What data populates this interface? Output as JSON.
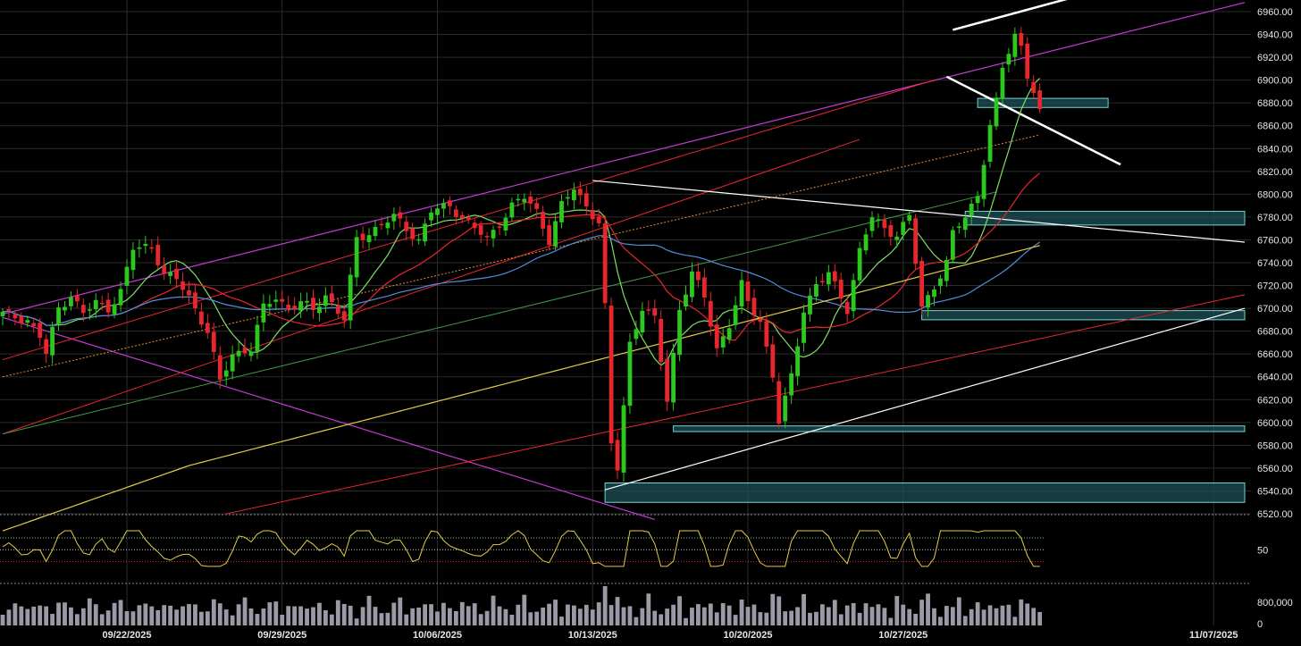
{
  "chart_data": {
    "type": "candlestick",
    "title": "",
    "price_axis": {
      "min": 6520,
      "max": 6970,
      "ticks": [
        6520,
        6540,
        6560,
        6580,
        6600,
        6620,
        6640,
        6660,
        6680,
        6700,
        6720,
        6740,
        6760,
        6780,
        6800,
        6820,
        6840,
        6860,
        6880,
        6900,
        6920,
        6940,
        6960
      ],
      "tick_labels": [
        "6520.00",
        "6540.00",
        "6560.00",
        "6580.00",
        "6600.00",
        "6620.00",
        "6640.00",
        "6660.00",
        "6680.00",
        "6700.00",
        "6720.00",
        "6740.00",
        "6760.00",
        "6780.00",
        "6800.00",
        "6820.00",
        "6840.00",
        "6860.00",
        "6880.00",
        "6900.00",
        "6920.00",
        "6940.00",
        "6960.00"
      ]
    },
    "date_axis": {
      "labels": [
        {
          "index": 20,
          "label": "09/22/2025"
        },
        {
          "index": 45,
          "label": "09/29/2025"
        },
        {
          "index": 70,
          "label": "10/06/2025"
        },
        {
          "index": 95,
          "label": "10/13/2025"
        },
        {
          "index": 120,
          "label": "10/20/2025"
        },
        {
          "index": 145,
          "label": "10/27/2025"
        },
        {
          "index": 195,
          "label": "11/07/2025"
        }
      ]
    },
    "bars": 168,
    "anchors": [
      [
        0,
        6695
      ],
      [
        4,
        6690
      ],
      [
        6,
        6675
      ],
      [
        7,
        6660
      ],
      [
        9,
        6700
      ],
      [
        11,
        6712
      ],
      [
        13,
        6695
      ],
      [
        15,
        6705
      ],
      [
        17,
        6700
      ],
      [
        19,
        6715
      ],
      [
        21,
        6752
      ],
      [
        24,
        6755
      ],
      [
        26,
        6730
      ],
      [
        28,
        6725
      ],
      [
        30,
        6710
      ],
      [
        33,
        6680
      ],
      [
        35,
        6635
      ],
      [
        37,
        6660
      ],
      [
        40,
        6665
      ],
      [
        42,
        6700
      ],
      [
        44,
        6710
      ],
      [
        46,
        6700
      ],
      [
        48,
        6705
      ],
      [
        50,
        6698
      ],
      [
        52,
        6712
      ],
      [
        55,
        6690
      ],
      [
        57,
        6760
      ],
      [
        60,
        6770
      ],
      [
        63,
        6780
      ],
      [
        65,
        6770
      ],
      [
        67,
        6760
      ],
      [
        69,
        6785
      ],
      [
        72,
        6790
      ],
      [
        74,
        6780
      ],
      [
        76,
        6770
      ],
      [
        78,
        6760
      ],
      [
        80,
        6775
      ],
      [
        82,
        6790
      ],
      [
        84,
        6797
      ],
      [
        86,
        6785
      ],
      [
        88,
        6760
      ],
      [
        90,
        6790
      ],
      [
        92,
        6805
      ],
      [
        94,
        6790
      ],
      [
        96,
        6775
      ],
      [
        97,
        6700
      ],
      [
        98,
        6580
      ],
      [
        99,
        6560
      ],
      [
        101,
        6670
      ],
      [
        103,
        6700
      ],
      [
        105,
        6690
      ],
      [
        107,
        6620
      ],
      [
        109,
        6700
      ],
      [
        111,
        6730
      ],
      [
        113,
        6710
      ],
      [
        115,
        6665
      ],
      [
        117,
        6685
      ],
      [
        119,
        6720
      ],
      [
        120,
        6705
      ],
      [
        122,
        6690
      ],
      [
        124,
        6640
      ],
      [
        125,
        6600
      ],
      [
        127,
        6640
      ],
      [
        129,
        6700
      ],
      [
        131,
        6720
      ],
      [
        133,
        6730
      ],
      [
        136,
        6700
      ],
      [
        138,
        6750
      ],
      [
        140,
        6780
      ],
      [
        142,
        6770
      ],
      [
        144,
        6765
      ],
      [
        146,
        6780
      ],
      [
        147,
        6740
      ],
      [
        148,
        6700
      ],
      [
        150,
        6720
      ],
      [
        152,
        6740
      ],
      [
        153,
        6765
      ],
      [
        155,
        6780
      ],
      [
        157,
        6800
      ],
      [
        158,
        6830
      ],
      [
        159,
        6860
      ],
      [
        160,
        6880
      ],
      [
        161,
        6910
      ],
      [
        162,
        6925
      ],
      [
        163,
        6940
      ],
      [
        164,
        6930
      ],
      [
        165,
        6905
      ],
      [
        166,
        6890
      ],
      [
        167,
        6870
      ]
    ],
    "moving_averages": [
      {
        "color": "#7ddf64",
        "period": 9
      },
      {
        "color": "#e8262e",
        "period": 21
      },
      {
        "color": "#4f8fe0",
        "period": 50
      },
      {
        "color": "#e3cd45",
        "period": 200
      }
    ],
    "zones": [
      {
        "from": 6876,
        "to": 6884,
        "start": 157,
        "end": 178
      },
      {
        "from": 6773,
        "to": 6785,
        "start": 155,
        "end": 200
      },
      {
        "from": 6690,
        "to": 6698,
        "start": 148,
        "end": 200
      },
      {
        "from": 6592,
        "to": 6597,
        "start": 108,
        "end": 200
      },
      {
        "from": 6530,
        "to": 6547,
        "start": 97,
        "end": 200
      }
    ],
    "rsi": {
      "levels": [
        70,
        50,
        30
      ],
      "label": "50"
    },
    "volume": {
      "label_top": "800,000",
      "label_bottom": "0"
    },
    "colors": {
      "up": "#2cc71f",
      "down": "#e8262e",
      "zone_fill": "#1d4f55",
      "zone_stroke": "#74d6d6",
      "grid": "#2b2b2b"
    }
  }
}
